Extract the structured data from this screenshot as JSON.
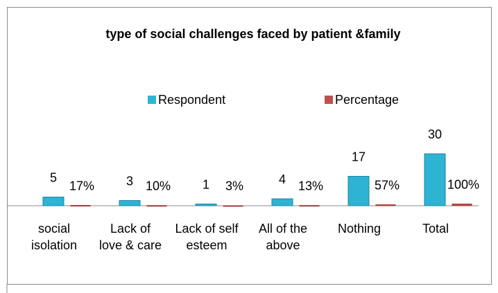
{
  "chart_data": {
    "type": "bar",
    "title": "type of social challenges faced by patient &family",
    "categories": [
      "social isolation",
      "Lack of love & care",
      "Lack of self esteem",
      "All of the above",
      "Nothing",
      "Total"
    ],
    "series": [
      {
        "name": "Respondent",
        "color": "#2fb3d3",
        "values": [
          5,
          3,
          1,
          4,
          17,
          30
        ]
      },
      {
        "name": "Percentage",
        "color": "#c0504d",
        "values": [
          0.17,
          0.1,
          0.03,
          0.13,
          0.57,
          1.0
        ],
        "value_labels": [
          "17%",
          "10%",
          "3%",
          "13%",
          "57%",
          "100%"
        ]
      }
    ],
    "ylim": [
      0,
      35
    ],
    "legend": "top"
  }
}
